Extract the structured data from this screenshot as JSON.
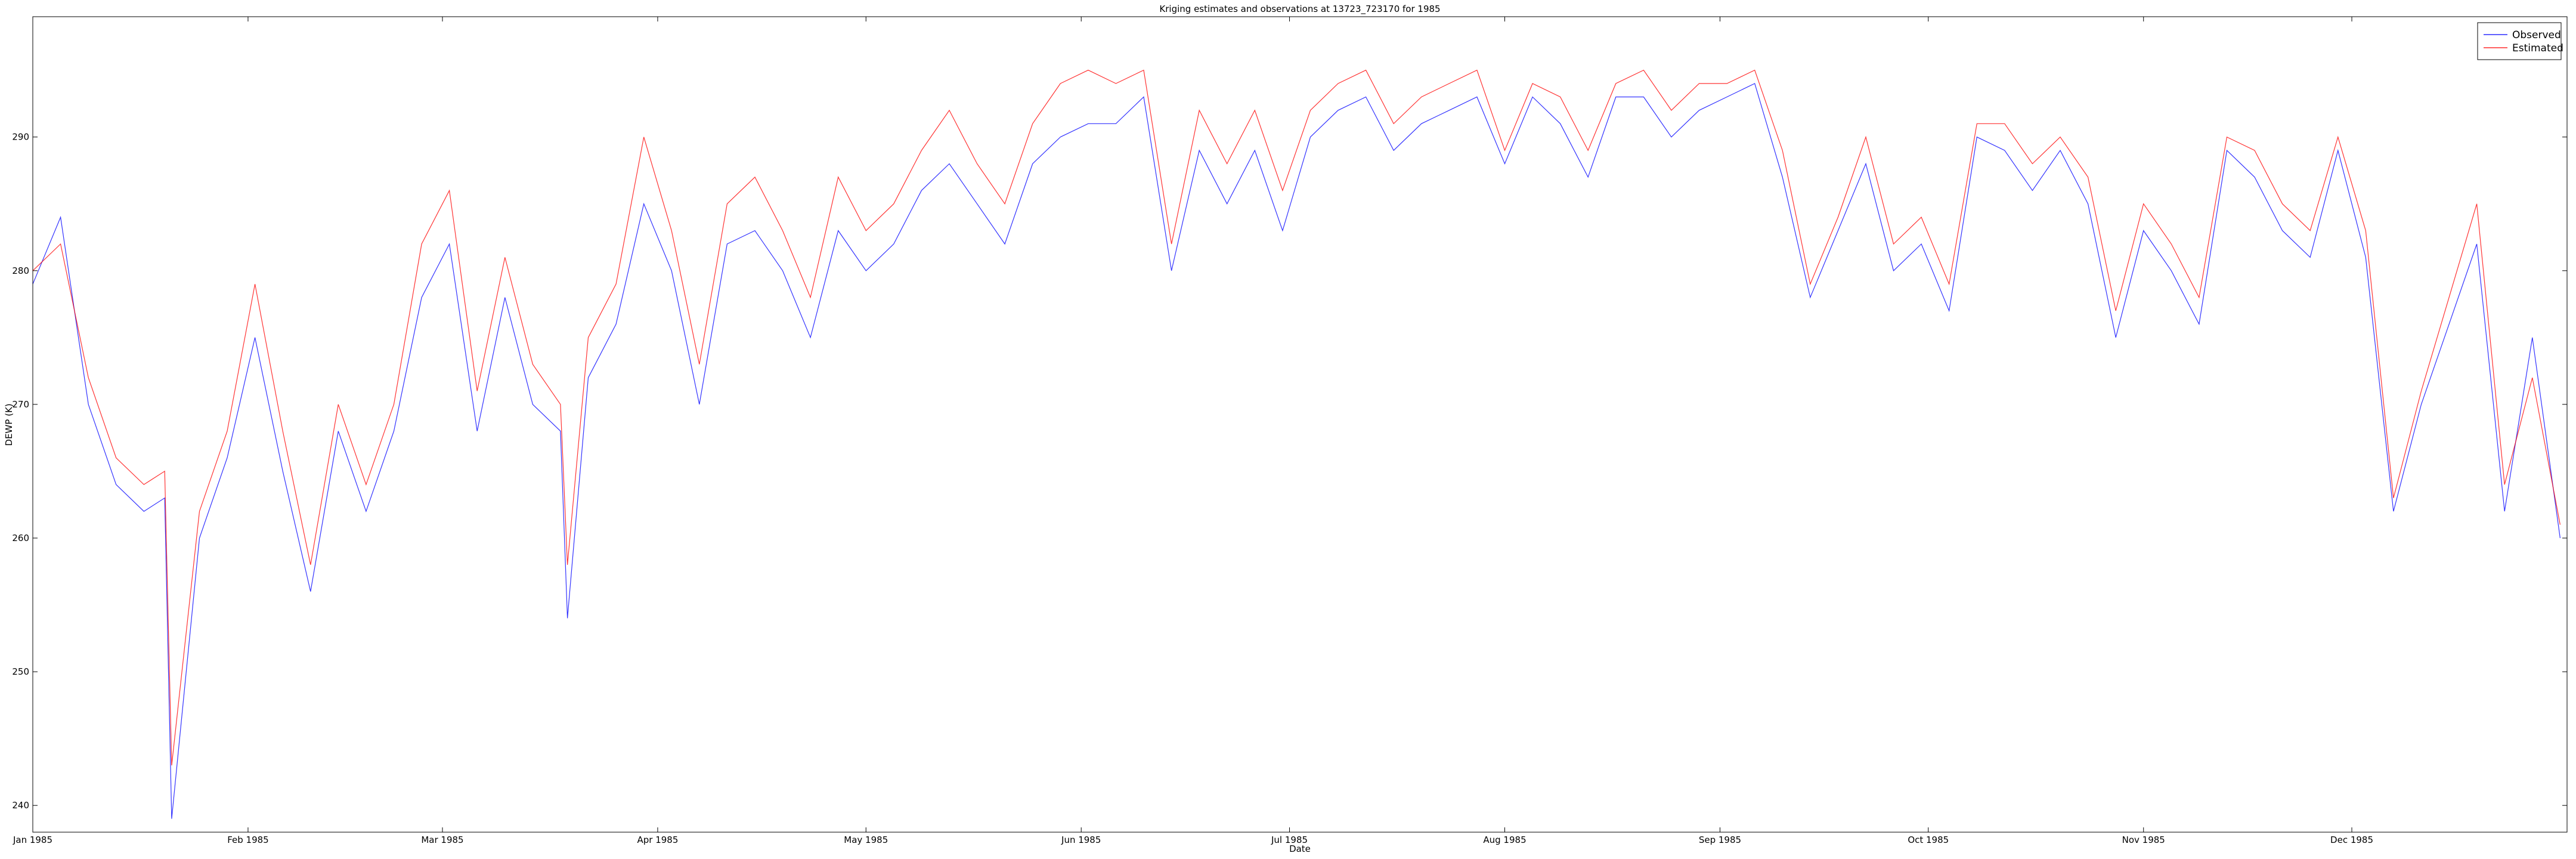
{
  "chart_data": {
    "type": "line",
    "title": "Kriging estimates and observations at 13723_723170 for 1985",
    "xlabel": "Date",
    "ylabel": "DEWP (K)",
    "xlim": [
      0,
      365
    ],
    "ylim": [
      238,
      299
    ],
    "xticks": [
      {
        "value": 0,
        "label": "Jan 1985"
      },
      {
        "value": 31,
        "label": "Feb 1985"
      },
      {
        "value": 59,
        "label": "Mar 1985"
      },
      {
        "value": 90,
        "label": "Apr 1985"
      },
      {
        "value": 120,
        "label": "May 1985"
      },
      {
        "value": 151,
        "label": "Jun 1985"
      },
      {
        "value": 181,
        "label": "Jul 1985"
      },
      {
        "value": 212,
        "label": "Aug 1985"
      },
      {
        "value": 243,
        "label": "Sep 1985"
      },
      {
        "value": 273,
        "label": "Oct 1985"
      },
      {
        "value": 304,
        "label": "Nov 1985"
      },
      {
        "value": 334,
        "label": "Dec 1985"
      }
    ],
    "yticks": [
      240,
      250,
      260,
      270,
      280,
      290
    ],
    "legend": "upper right",
    "x": [
      0,
      4,
      8,
      12,
      16,
      19,
      20,
      24,
      28,
      32,
      36,
      40,
      44,
      48,
      52,
      56,
      60,
      64,
      68,
      72,
      76,
      77,
      80,
      84,
      88,
      92,
      96,
      100,
      104,
      108,
      112,
      116,
      120,
      124,
      128,
      132,
      136,
      140,
      144,
      148,
      152,
      156,
      160,
      164,
      168,
      172,
      176,
      180,
      184,
      188,
      192,
      196,
      200,
      204,
      208,
      212,
      216,
      220,
      224,
      228,
      232,
      236,
      240,
      244,
      248,
      252,
      256,
      260,
      264,
      268,
      272,
      276,
      280,
      284,
      288,
      292,
      296,
      300,
      304,
      308,
      312,
      316,
      320,
      324,
      328,
      332,
      336,
      340,
      344,
      348,
      352,
      356,
      360,
      364
    ],
    "series": [
      {
        "name": "Observed",
        "color": "#0000ff",
        "values": [
          279,
          284,
          270,
          264,
          262,
          263,
          239,
          260,
          266,
          275,
          265,
          256,
          268,
          262,
          268,
          278,
          282,
          268,
          278,
          270,
          268,
          254,
          272,
          276,
          285,
          280,
          270,
          282,
          283,
          280,
          275,
          283,
          280,
          282,
          286,
          288,
          285,
          282,
          288,
          290,
          291,
          291,
          293,
          280,
          289,
          285,
          289,
          283,
          290,
          292,
          293,
          289,
          291,
          292,
          293,
          288,
          293,
          291,
          287,
          293,
          293,
          290,
          292,
          293,
          294,
          287,
          278,
          283,
          288,
          280,
          282,
          277,
          290,
          289,
          286,
          289,
          285,
          275,
          283,
          280,
          276,
          289,
          287,
          283,
          281,
          289,
          281,
          262,
          270,
          276,
          282,
          262,
          275,
          260
        ]
      },
      {
        "name": "Estimated",
        "color": "#ff0000",
        "values": [
          280,
          282,
          272,
          266,
          264,
          265,
          243,
          262,
          268,
          279,
          268,
          258,
          270,
          264,
          270,
          282,
          286,
          271,
          281,
          273,
          270,
          258,
          275,
          279,
          290,
          283,
          273,
          285,
          287,
          283,
          278,
          287,
          283,
          285,
          289,
          292,
          288,
          285,
          291,
          294,
          295,
          294,
          295,
          282,
          292,
          288,
          292,
          286,
          292,
          294,
          295,
          291,
          293,
          294,
          295,
          289,
          294,
          293,
          289,
          294,
          295,
          292,
          294,
          294,
          295,
          289,
          279,
          284,
          290,
          282,
          284,
          279,
          291,
          291,
          288,
          290,
          287,
          277,
          285,
          282,
          278,
          290,
          289,
          285,
          283,
          290,
          283,
          263,
          271,
          278,
          285,
          264,
          272,
          261
        ]
      }
    ]
  }
}
